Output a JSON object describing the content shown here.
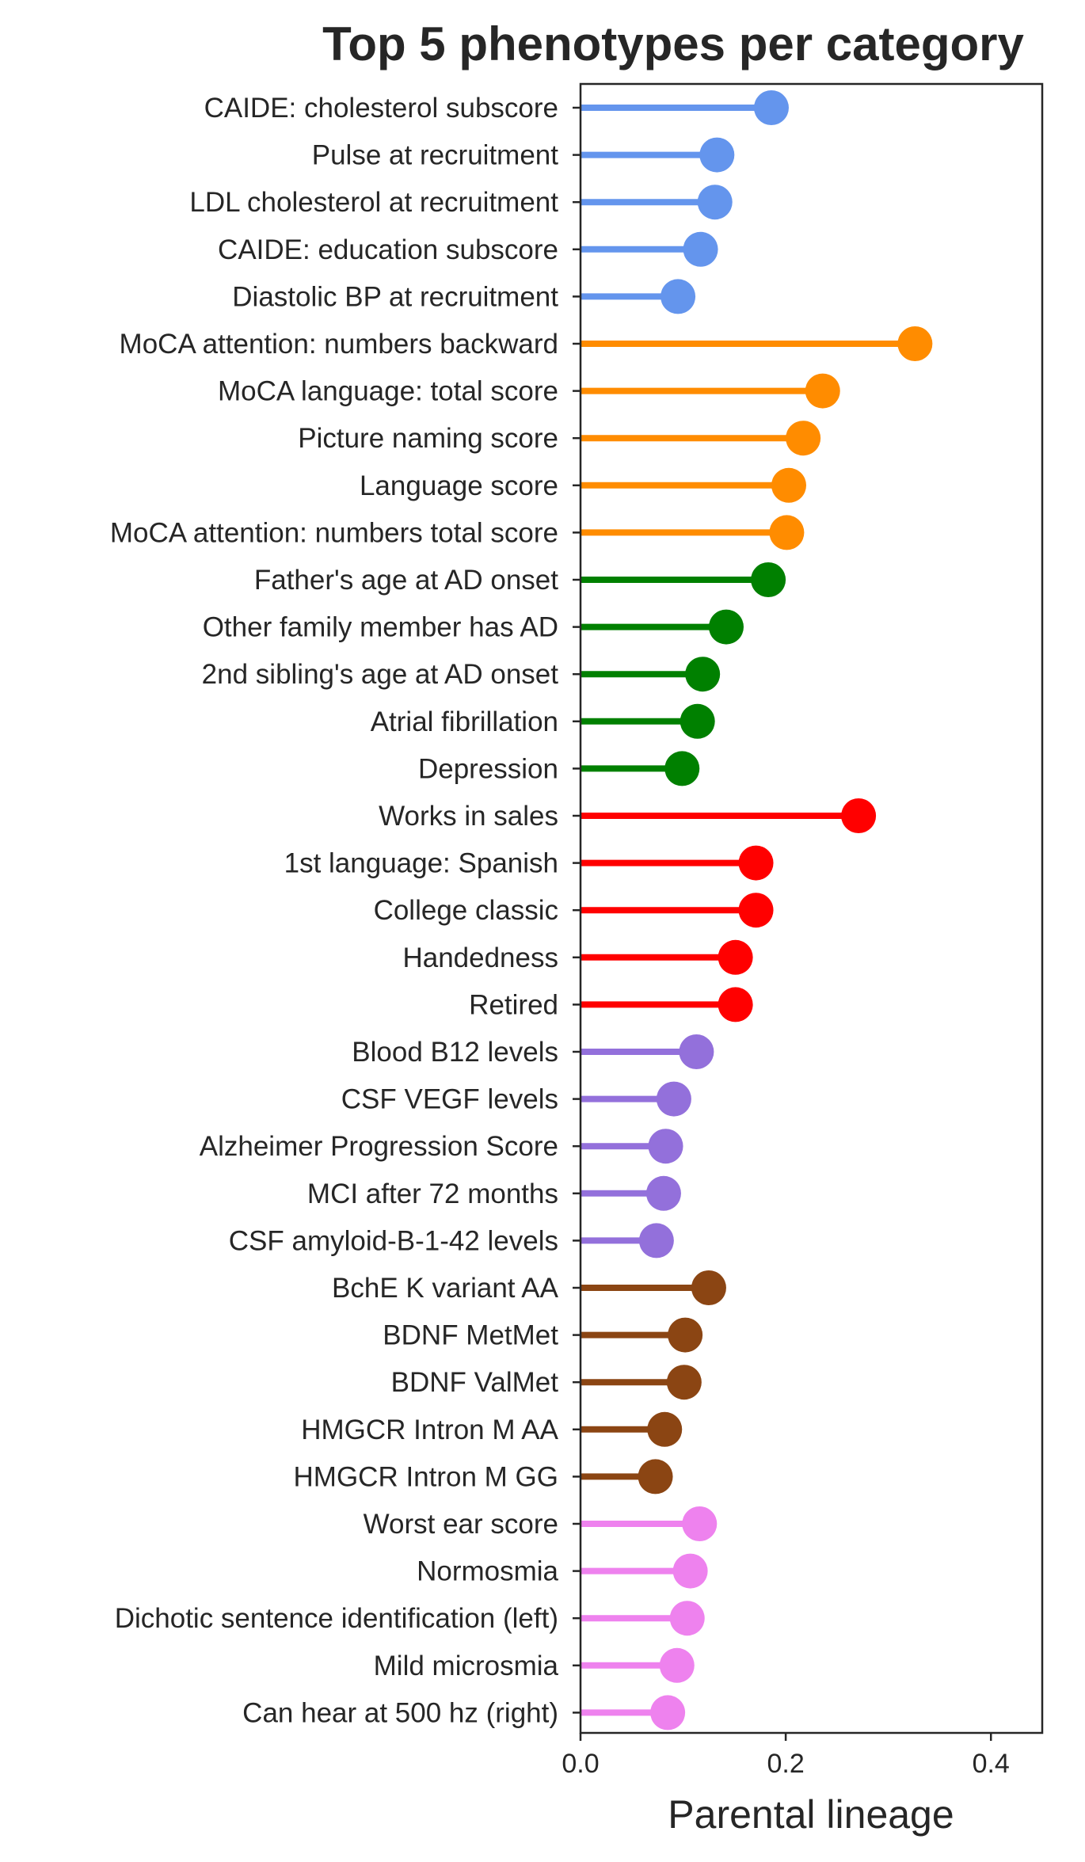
{
  "chart_data": {
    "type": "lollipop",
    "title": "Top 5 phenotypes per category",
    "xlabel": "Parental lineage",
    "ylabel": "",
    "xlim": [
      0.0,
      0.45
    ],
    "xticks": [
      0.0,
      0.2,
      0.4
    ],
    "xtick_labels": [
      "0.0",
      "0.2",
      "0.4"
    ],
    "grid": false,
    "legend": "none",
    "items": [
      {
        "label": "CAIDE: cholesterol subscore",
        "value": 0.186,
        "color": "#6495ED"
      },
      {
        "label": "Pulse at recruitment",
        "value": 0.133,
        "color": "#6495ED"
      },
      {
        "label": "LDL cholesterol at recruitment",
        "value": 0.131,
        "color": "#6495ED"
      },
      {
        "label": "CAIDE: education subscore",
        "value": 0.117,
        "color": "#6495ED"
      },
      {
        "label": "Diastolic BP at recruitment",
        "value": 0.095,
        "color": "#6495ED"
      },
      {
        "label": "MoCA attention: numbers backward",
        "value": 0.326,
        "color": "#FF8C00"
      },
      {
        "label": "MoCA language: total score",
        "value": 0.236,
        "color": "#FF8C00"
      },
      {
        "label": "Picture naming score",
        "value": 0.217,
        "color": "#FF8C00"
      },
      {
        "label": "Language score",
        "value": 0.203,
        "color": "#FF8C00"
      },
      {
        "label": "MoCA attention: numbers total score",
        "value": 0.201,
        "color": "#FF8C00"
      },
      {
        "label": "Father's age at AD onset",
        "value": 0.183,
        "color": "#008000"
      },
      {
        "label": "Other family member has AD",
        "value": 0.142,
        "color": "#008000"
      },
      {
        "label": "2nd sibling's age at AD onset",
        "value": 0.119,
        "color": "#008000"
      },
      {
        "label": "Atrial fibrillation",
        "value": 0.114,
        "color": "#008000"
      },
      {
        "label": "Depression",
        "value": 0.099,
        "color": "#008000"
      },
      {
        "label": "Works in sales",
        "value": 0.271,
        "color": "#FF0000"
      },
      {
        "label": "1st language: Spanish",
        "value": 0.171,
        "color": "#FF0000"
      },
      {
        "label": "College classic",
        "value": 0.171,
        "color": "#FF0000"
      },
      {
        "label": "Handedness",
        "value": 0.151,
        "color": "#FF0000"
      },
      {
        "label": "Retired",
        "value": 0.151,
        "color": "#FF0000"
      },
      {
        "label": "Blood B12 levels",
        "value": 0.113,
        "color": "#9370DB"
      },
      {
        "label": "CSF VEGF levels",
        "value": 0.091,
        "color": "#9370DB"
      },
      {
        "label": "Alzheimer Progression Score",
        "value": 0.083,
        "color": "#9370DB"
      },
      {
        "label": "MCI after 72 months",
        "value": 0.081,
        "color": "#9370DB"
      },
      {
        "label": "CSF amyloid-B-1-42 levels",
        "value": 0.074,
        "color": "#9370DB"
      },
      {
        "label": "BchE K variant AA",
        "value": 0.125,
        "color": "#8B4513"
      },
      {
        "label": "BDNF MetMet",
        "value": 0.102,
        "color": "#8B4513"
      },
      {
        "label": "BDNF ValMet",
        "value": 0.101,
        "color": "#8B4513"
      },
      {
        "label": "HMGCR Intron M AA",
        "value": 0.082,
        "color": "#8B4513"
      },
      {
        "label": "HMGCR Intron M GG",
        "value": 0.073,
        "color": "#8B4513"
      },
      {
        "label": "Worst ear score",
        "value": 0.116,
        "color": "#EE82EE"
      },
      {
        "label": "Normosmia",
        "value": 0.107,
        "color": "#EE82EE"
      },
      {
        "label": "Dichotic sentence identification (left)",
        "value": 0.104,
        "color": "#EE82EE"
      },
      {
        "label": "Mild microsmia",
        "value": 0.094,
        "color": "#EE82EE"
      },
      {
        "label": "Can hear at 500 hz (right)",
        "value": 0.085,
        "color": "#EE82EE"
      }
    ]
  }
}
